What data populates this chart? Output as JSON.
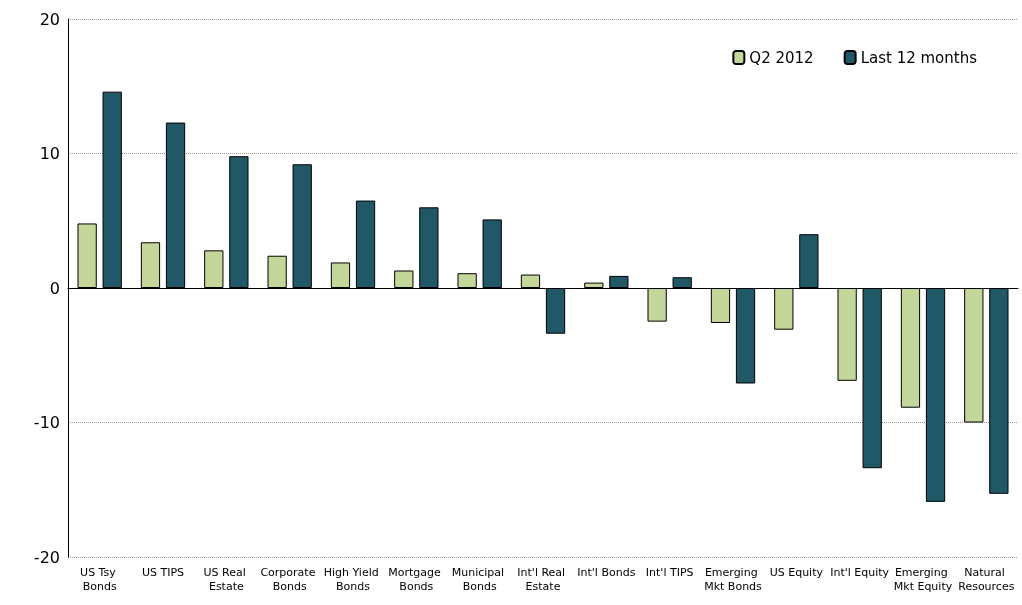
{
  "chart_data": {
    "type": "bar",
    "categories": [
      "US Tsy Bonds",
      "US TIPS",
      "US Real Estate",
      "Corporate Bonds",
      "High Yield Bonds",
      "Mortgage Bonds",
      "Municipal Bonds",
      "Int'l Real Estate",
      "Int'l Bonds",
      "Int'l TIPS",
      "Emerging Mkt Bonds",
      "US Equity",
      "Int'l Equity",
      "Emerging Mkt Equity",
      "Natural Resources"
    ],
    "series": [
      {
        "name": "Q2 2012",
        "color": "#c4d79b",
        "values": [
          4.8,
          3.4,
          2.8,
          2.4,
          1.9,
          1.3,
          1.1,
          1.0,
          0.4,
          -2.5,
          -2.6,
          -3.1,
          -6.9,
          -8.9,
          -10.0
        ]
      },
      {
        "name": "Last 12 months",
        "color": "#215868",
        "values": [
          14.6,
          12.3,
          9.8,
          9.2,
          6.5,
          6.0,
          5.1,
          -3.4,
          0.9,
          0.8,
          -7.1,
          4.0,
          -13.4,
          -15.9,
          -15.3
        ]
      }
    ],
    "ylim": [
      -20,
      20
    ],
    "yticks": [
      -20,
      -10,
      0,
      10,
      20
    ],
    "grid": "y",
    "legend": "top right"
  }
}
